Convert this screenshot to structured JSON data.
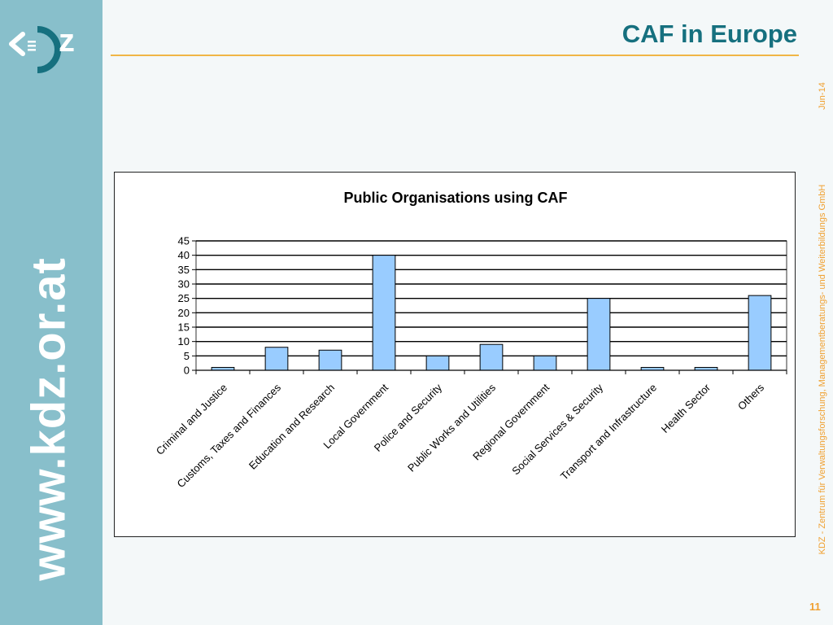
{
  "slide": {
    "title": "CAF in Europe",
    "website": "www.kdz.or.at",
    "date": "Jun-14",
    "organisation": "KDZ - Zentrum für Verwaltungsforschung, Managementberatungs- und Weiterbildungs GmbH",
    "page_number": "11",
    "logo_letter": "z"
  },
  "colors": {
    "sidebar": "#88bfcb",
    "title": "#16707f",
    "accent": "#f0b646",
    "bar_fill": "#99ccff",
    "bar_stroke": "#000000"
  },
  "chart_data": {
    "type": "bar",
    "title": "Public Organisations using CAF",
    "xlabel": "",
    "ylabel": "",
    "categories": [
      "Criminal and Justice",
      "Customs, Taxes and Finances",
      "Education and Research",
      "Local Government",
      "Police and Security",
      "Public Works and Utilities",
      "Regional Government",
      "Social Services & Security",
      "Transport and Infrastructure",
      "Health Sector",
      "Others"
    ],
    "values": [
      1,
      8,
      7,
      40,
      5,
      9,
      5,
      25,
      1,
      1,
      26
    ],
    "ylim": [
      0,
      45
    ],
    "yticks": [
      0,
      5,
      10,
      15,
      20,
      25,
      30,
      35,
      40,
      45
    ],
    "grid": true,
    "legend": "none"
  }
}
